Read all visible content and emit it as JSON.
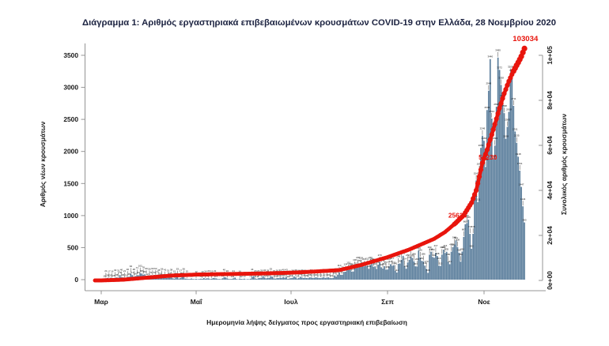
{
  "title": "Διάγραμμα 1: Αριθμός εργαστηριακά επιβεβαιωμένων κρουσμάτων COVID-19 στην Ελλάδα, 28 Νοεμβρίου 2020",
  "colors": {
    "bar": "#5b7e9c",
    "cumulative": "#e8150d",
    "title_text": "#1b2240",
    "axis_line": "#949494",
    "tick_text": "#1a1a1a",
    "bar_label": "#111111"
  },
  "chart_data": {
    "type": "bar",
    "title": "Διάγραμμα 1: Αριθμός εργαστηριακά επιβεβαιωμένων κρουσμάτων COVID-19 στην Ελλάδα, 28 Νοεμβρίου 2020",
    "xlabel": "Ημερομηνία λήψης δείγματος προς εργαστηριακή επιβεβαίωση",
    "ylabel_left": "Αριθμός νέων κρουσμάτων",
    "ylabel_right": "Συνολικός αριθμός κρουσμάτων",
    "x_tick_labels": [
      "Μαρ",
      "Μαΐ",
      "Ιουλ",
      "Σεπ",
      "Νοε"
    ],
    "y_left_ticks": [
      0,
      500,
      1000,
      1500,
      2000,
      2500,
      3000,
      3500
    ],
    "y_left_lim": [
      0,
      3500
    ],
    "y_right_tick_labels": [
      "0e+00",
      "2e+04",
      "4e+04",
      "6e+04",
      "8e+04",
      "1e+05"
    ],
    "y_right_tick_values": [
      0,
      20000,
      40000,
      60000,
      80000,
      100000
    ],
    "y_right_lim": [
      0,
      100000
    ],
    "grid": "off",
    "start_date": "2020-02-26",
    "end_date": "2020-11-28",
    "series": [
      {
        "name": "Αριθμός νέων κρουσμάτων (daily new cases, by sampling date)",
        "type": "bar",
        "month_order": [
          "feb",
          "mar",
          "apr",
          "may",
          "jun",
          "jul",
          "aug",
          "sep",
          "oct",
          "nov"
        ],
        "values_by_month": {
          "feb": [
            3,
            4,
            3,
            4
          ],
          "mar": [
            7,
            10,
            15,
            21,
            28,
            17,
            30,
            16,
            25,
            32,
            35,
            31,
            73,
            40,
            36,
            21,
            31,
            46,
            45,
            94,
            71,
            48,
            56,
            71,
            69,
            102,
            95,
            78,
            83,
            60,
            43
          ],
          "apr": [
            56,
            71,
            60,
            74,
            62,
            77,
            35,
            52,
            56,
            33,
            41,
            25,
            31,
            62,
            38,
            21,
            15,
            55,
            53,
            17,
            27,
            58,
            56,
            16,
            15,
            10,
            11,
            18,
            10,
            7
          ],
          "may": [
            12,
            6,
            10,
            15,
            13,
            24,
            14,
            21,
            20,
            10,
            15,
            26,
            22,
            19,
            10,
            10,
            8,
            21,
            40,
            35,
            20,
            11,
            10,
            13,
            21,
            32,
            10,
            3,
            16,
            12,
            9
          ],
          "jun": [
            15,
            5,
            9,
            7,
            15,
            44,
            56,
            20,
            12,
            23,
            27,
            29,
            58,
            34,
            20,
            29,
            28,
            53,
            47,
            20,
            16,
            26,
            24,
            33,
            28,
            40,
            31,
            43,
            12,
            19
          ],
          "jul": [
            24,
            28,
            50,
            36,
            17,
            26,
            45,
            33,
            26,
            31,
            25,
            23,
            35,
            34,
            27,
            29,
            36,
            31,
            27,
            24,
            31,
            39,
            27,
            32,
            36,
            27,
            23,
            27,
            65,
            50,
            78
          ],
          "aug": [
            110,
            75,
            77,
            121,
            124,
            153,
            151,
            203,
            126,
            127,
            196,
            212,
            230,
            254,
            228,
            217,
            207,
            217,
            212,
            169,
            230,
            284,
            201,
            207,
            168,
            233,
            270,
            193,
            175,
            209,
            157
          ],
          "sep": [
            158,
            207,
            241,
            217,
            225,
            141,
            111,
            248,
            252,
            312,
            372,
            214,
            170,
            268,
            310,
            358,
            339,
            286,
            207,
            206,
            453,
            346,
            293,
            286,
            218,
            170,
            106,
            390,
            436,
            354
          ],
          "oct": [
            342,
            417,
            368,
            218,
            213,
            390,
            468,
            416,
            435,
            280,
            241,
            436,
            508,
            548,
            611,
            508,
            420,
            280,
            438,
            667,
            865,
            882,
            935,
            714,
            482,
            715,
            1259,
            1547,
            1211,
            1690,
            2056
          ],
          "nov": [
            2246,
            2166,
            1758,
            2646,
            2948,
            3440,
            2514,
            1889,
            2090,
            2698,
            3465,
            3272,
            3038,
            2835,
            2598,
            2198,
            2383,
            2618,
            3209,
            3227,
            2711,
            2311,
            2135,
            1918,
            1701,
            1447,
            1144,
            893
          ]
        }
      },
      {
        "name": "Συνολικός αριθμός κρουσμάτων (cumulative cases)",
        "type": "line",
        "anchor_points_day_value": [
          [
            0,
            3
          ],
          [
            4,
            7
          ],
          [
            18,
            331
          ],
          [
            35,
            1314
          ],
          [
            49,
            2145
          ],
          [
            65,
            2591
          ],
          [
            79,
            2770
          ],
          [
            96,
            2937
          ],
          [
            110,
            3121
          ],
          [
            126,
            3432
          ],
          [
            140,
            3883
          ],
          [
            157,
            4587
          ],
          [
            171,
            6858
          ],
          [
            188,
            10317
          ],
          [
            202,
            13730
          ],
          [
            218,
            18475
          ],
          [
            225,
            21500
          ],
          [
            232,
            25624
          ],
          [
            237,
            29000
          ],
          [
            242,
            34500
          ],
          [
            245,
            40000
          ],
          [
            249,
            52230
          ],
          [
            252,
            58000
          ],
          [
            256,
            67000
          ],
          [
            260,
            76500
          ],
          [
            263,
            83000
          ],
          [
            266,
            88500
          ],
          [
            269,
            93000
          ],
          [
            272,
            96800
          ],
          [
            274,
            99500
          ],
          [
            276,
            103034
          ]
        ]
      }
    ],
    "annotations": [
      {
        "text": "25624",
        "day": 233,
        "value": 29000
      },
      {
        "text": "52230",
        "day": 252.5,
        "value": 54700
      },
      {
        "text": "103034",
        "day": 276.6,
        "value": 107400,
        "big": true
      }
    ]
  }
}
